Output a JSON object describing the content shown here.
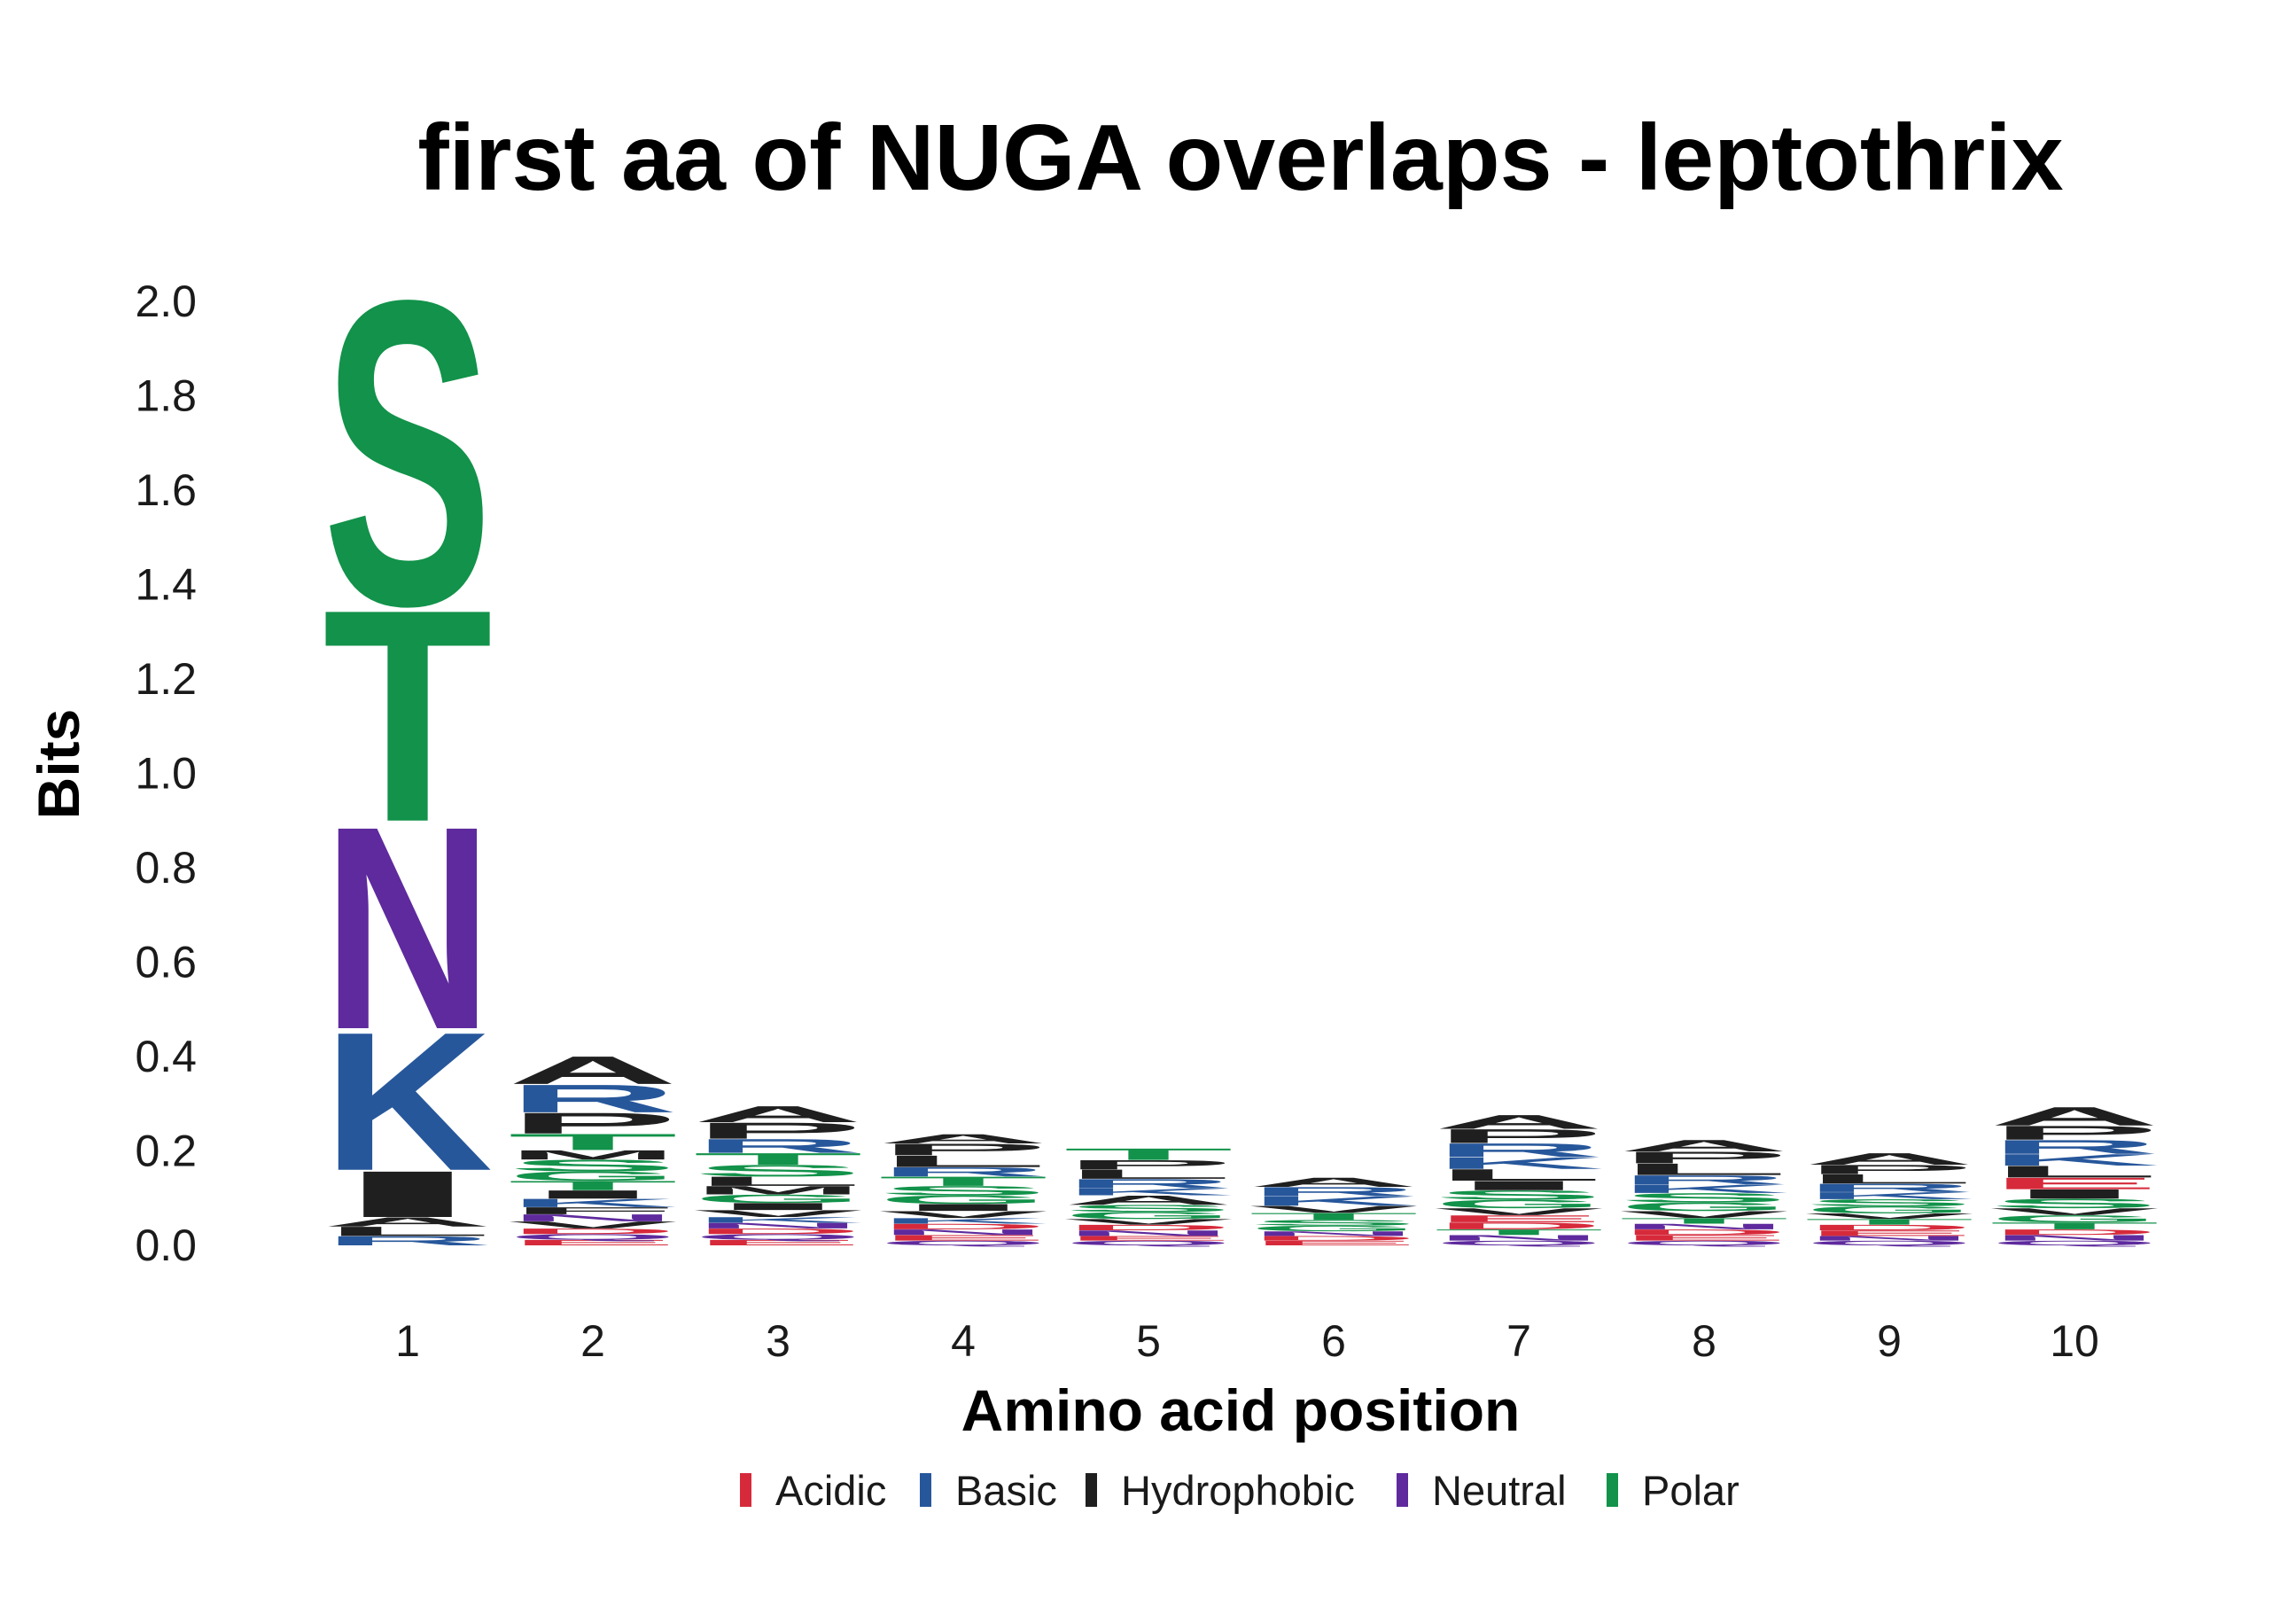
{
  "chart_data": {
    "type": "sequence-logo",
    "title": "first aa of NUGA overlaps - leptothrix",
    "xlabel": "Amino acid position",
    "ylabel": "Bits",
    "ylim": [
      0,
      2.0
    ],
    "y_ticks": [
      "0.0",
      "0.2",
      "0.4",
      "0.6",
      "0.8",
      "1.0",
      "1.2",
      "1.4",
      "1.6",
      "1.8",
      "2.0"
    ],
    "y_tick_values": [
      0,
      0.2,
      0.4,
      0.6,
      0.8,
      1.0,
      1.2,
      1.4,
      1.6,
      1.8,
      2.0
    ],
    "positions": [
      "1",
      "2",
      "3",
      "4",
      "5",
      "6",
      "7",
      "8",
      "9",
      "10"
    ],
    "color_scheme": {
      "Acidic": "#d62a3b",
      "Basic": "#27579b",
      "Hydrophobic": "#1f1f1f",
      "Neutral": "#5e2a9d",
      "Polar": "#12924a"
    },
    "legend": [
      "Acidic",
      "Basic",
      "Hydrophobic",
      "Neutral",
      "Polar"
    ],
    "legend_placement": "bottom",
    "grid": false,
    "stacks": [
      {
        "position": 1,
        "letters": [
          [
            "R",
            "Basic",
            0.02
          ],
          [
            "L",
            "Hydrophobic",
            0.02
          ],
          [
            "A",
            "Hydrophobic",
            0.02
          ],
          [
            "I",
            "Hydrophobic",
            0.1
          ],
          [
            "K",
            "Basic",
            0.3
          ],
          [
            "N",
            "Neutral",
            0.44
          ],
          [
            "T",
            "Polar",
            0.46
          ],
          [
            "S",
            "Polar",
            0.66
          ]
        ]
      },
      {
        "position": 2,
        "letters": [
          [
            "E",
            "Acidic",
            0.012
          ],
          [
            "Q",
            "Neutral",
            0.012
          ],
          [
            "D",
            "Acidic",
            0.012
          ],
          [
            "V",
            "Hydrophobic",
            0.015
          ],
          [
            "N",
            "Neutral",
            0.015
          ],
          [
            "F",
            "Hydrophobic",
            0.015
          ],
          [
            "K",
            "Basic",
            0.018
          ],
          [
            "I",
            "Hydrophobic",
            0.018
          ],
          [
            "T",
            "Polar",
            0.02
          ],
          [
            "G",
            "Polar",
            0.02
          ],
          [
            "S",
            "Polar",
            0.025
          ],
          [
            "M",
            "Hydrophobic",
            0.02
          ],
          [
            "T",
            "Polar",
            0.035
          ],
          [
            "P",
            "Hydrophobic",
            0.045
          ],
          [
            "R",
            "Basic",
            0.06
          ],
          [
            "A",
            "Hydrophobic",
            0.06
          ]
        ]
      },
      {
        "position": 3,
        "letters": [
          [
            "E",
            "Acidic",
            0.012
          ],
          [
            "Q",
            "Neutral",
            0.012
          ],
          [
            "D",
            "Acidic",
            0.012
          ],
          [
            "N",
            "Neutral",
            0.012
          ],
          [
            "K",
            "Basic",
            0.012
          ],
          [
            "V",
            "Hydrophobic",
            0.015
          ],
          [
            "I",
            "Hydrophobic",
            0.015
          ],
          [
            "G",
            "Polar",
            0.018
          ],
          [
            "M",
            "Hydrophobic",
            0.018
          ],
          [
            "L",
            "Hydrophobic",
            0.02
          ],
          [
            "S",
            "Polar",
            0.025
          ],
          [
            "T",
            "Polar",
            0.025
          ],
          [
            "R",
            "Basic",
            0.03
          ],
          [
            "P",
            "Hydrophobic",
            0.035
          ],
          [
            "A",
            "Hydrophobic",
            0.035
          ]
        ]
      },
      {
        "position": 4,
        "letters": [
          [
            "Q",
            "Neutral",
            0.01
          ],
          [
            "E",
            "Acidic",
            0.012
          ],
          [
            "N",
            "Neutral",
            0.012
          ],
          [
            "D",
            "Acidic",
            0.012
          ],
          [
            "K",
            "Basic",
            0.012
          ],
          [
            "V",
            "Hydrophobic",
            0.015
          ],
          [
            "I",
            "Hydrophobic",
            0.015
          ],
          [
            "G",
            "Polar",
            0.018
          ],
          [
            "S",
            "Polar",
            0.02
          ],
          [
            "T",
            "Polar",
            0.02
          ],
          [
            "R",
            "Basic",
            0.02
          ],
          [
            "L",
            "Hydrophobic",
            0.025
          ],
          [
            "P",
            "Hydrophobic",
            0.025
          ],
          [
            "A",
            "Hydrophobic",
            0.02
          ]
        ]
      },
      {
        "position": 5,
        "letters": [
          [
            "Q",
            "Neutral",
            0.01
          ],
          [
            "E",
            "Acidic",
            0.01
          ],
          [
            "N",
            "Neutral",
            0.012
          ],
          [
            "D",
            "Acidic",
            0.012
          ],
          [
            "V",
            "Hydrophobic",
            0.012
          ],
          [
            "G",
            "Polar",
            0.015
          ],
          [
            "S",
            "Polar",
            0.015
          ],
          [
            "A",
            "Hydrophobic",
            0.02
          ],
          [
            "K",
            "Basic",
            0.015
          ],
          [
            "R",
            "Basic",
            0.02
          ],
          [
            "L",
            "Hydrophobic",
            0.02
          ],
          [
            "P",
            "Hydrophobic",
            0.02
          ],
          [
            "T",
            "Polar",
            0.025
          ]
        ]
      },
      {
        "position": 6,
        "letters": [
          [
            "E",
            "Acidic",
            0.01
          ],
          [
            "D",
            "Acidic",
            0.01
          ],
          [
            "N",
            "Neutral",
            0.01
          ],
          [
            "G",
            "Polar",
            0.012
          ],
          [
            "S",
            "Polar",
            0.012
          ],
          [
            "T",
            "Polar",
            0.015
          ],
          [
            "V",
            "Hydrophobic",
            0.015
          ],
          [
            "K",
            "Basic",
            0.02
          ],
          [
            "R",
            "Basic",
            0.02
          ],
          [
            "A",
            "Hydrophobic",
            0.02
          ]
        ]
      },
      {
        "position": 7,
        "letters": [
          [
            "Q",
            "Neutral",
            0.01
          ],
          [
            "N",
            "Neutral",
            0.012
          ],
          [
            "T",
            "Polar",
            0.012
          ],
          [
            "D",
            "Acidic",
            0.015
          ],
          [
            "E",
            "Acidic",
            0.015
          ],
          [
            "V",
            "Hydrophobic",
            0.015
          ],
          [
            "G",
            "Polar",
            0.018
          ],
          [
            "S",
            "Polar",
            0.02
          ],
          [
            "I",
            "Hydrophobic",
            0.02
          ],
          [
            "L",
            "Hydrophobic",
            0.025
          ],
          [
            "K",
            "Basic",
            0.025
          ],
          [
            "R",
            "Basic",
            0.03
          ],
          [
            "P",
            "Hydrophobic",
            0.03
          ],
          [
            "A",
            "Hydrophobic",
            0.03
          ]
        ]
      },
      {
        "position": 8,
        "letters": [
          [
            "Q",
            "Neutral",
            0.01
          ],
          [
            "E",
            "Acidic",
            0.012
          ],
          [
            "D",
            "Acidic",
            0.012
          ],
          [
            "N",
            "Neutral",
            0.012
          ],
          [
            "T",
            "Polar",
            0.012
          ],
          [
            "V",
            "Hydrophobic",
            0.015
          ],
          [
            "G",
            "Polar",
            0.018
          ],
          [
            "S",
            "Polar",
            0.02
          ],
          [
            "K",
            "Basic",
            0.018
          ],
          [
            "R",
            "Basic",
            0.02
          ],
          [
            "L",
            "Hydrophobic",
            0.025
          ],
          [
            "P",
            "Hydrophobic",
            0.025
          ],
          [
            "A",
            "Hydrophobic",
            0.025
          ]
        ]
      },
      {
        "position": 9,
        "letters": [
          [
            "Q",
            "Neutral",
            0.01
          ],
          [
            "N",
            "Neutral",
            0.01
          ],
          [
            "E",
            "Acidic",
            0.012
          ],
          [
            "D",
            "Acidic",
            0.012
          ],
          [
            "T",
            "Polar",
            0.012
          ],
          [
            "V",
            "Hydrophobic",
            0.012
          ],
          [
            "G",
            "Polar",
            0.015
          ],
          [
            "S",
            "Polar",
            0.015
          ],
          [
            "K",
            "Basic",
            0.015
          ],
          [
            "R",
            "Basic",
            0.018
          ],
          [
            "L",
            "Hydrophobic",
            0.02
          ],
          [
            "P",
            "Hydrophobic",
            0.02
          ],
          [
            "A",
            "Hydrophobic",
            0.025
          ]
        ]
      },
      {
        "position": 10,
        "letters": [
          [
            "Q",
            "Neutral",
            0.01
          ],
          [
            "N",
            "Neutral",
            0.012
          ],
          [
            "D",
            "Acidic",
            0.012
          ],
          [
            "T",
            "Polar",
            0.015
          ],
          [
            "G",
            "Polar",
            0.015
          ],
          [
            "V",
            "Hydrophobic",
            0.015
          ],
          [
            "S",
            "Polar",
            0.02
          ],
          [
            "I",
            "Hydrophobic",
            0.02
          ],
          [
            "E",
            "Acidic",
            0.025
          ],
          [
            "L",
            "Hydrophobic",
            0.025
          ],
          [
            "K",
            "Basic",
            0.025
          ],
          [
            "R",
            "Basic",
            0.03
          ],
          [
            "P",
            "Hydrophobic",
            0.03
          ],
          [
            "A",
            "Hydrophobic",
            0.04
          ]
        ]
      }
    ]
  }
}
